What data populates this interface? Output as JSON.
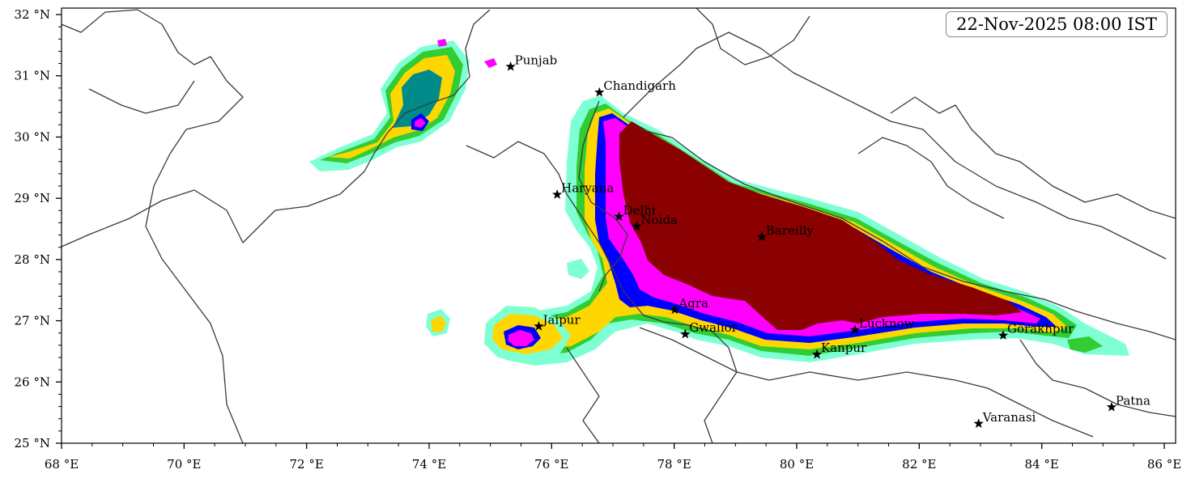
{
  "timestamp": "22-Nov-2025 08:00 IST",
  "axes": {
    "x_ticks": [
      {
        "value": 68,
        "label": "68 °E"
      },
      {
        "value": 70,
        "label": "70 °E"
      },
      {
        "value": 72,
        "label": "72 °E"
      },
      {
        "value": 74,
        "label": "74 °E"
      },
      {
        "value": 76,
        "label": "76 °E"
      },
      {
        "value": 78,
        "label": "78 °E"
      },
      {
        "value": 80,
        "label": "80 °E"
      },
      {
        "value": 82,
        "label": "82 °E"
      },
      {
        "value": 84,
        "label": "84 °E"
      },
      {
        "value": 86,
        "label": "86 °E"
      }
    ],
    "y_ticks": [
      {
        "value": 32,
        "label": "32 °N"
      },
      {
        "value": 31,
        "label": "31 °N"
      },
      {
        "value": 30,
        "label": "30 °N"
      },
      {
        "value": 29,
        "label": "29 °N"
      },
      {
        "value": 28,
        "label": "28 °N"
      },
      {
        "value": 27,
        "label": "27 °N"
      },
      {
        "value": 26,
        "label": "26 °N"
      },
      {
        "value": 25,
        "label": "25 °N"
      }
    ],
    "lon_range": [
      68,
      86.2
    ],
    "lat_range": [
      25,
      32.1
    ]
  },
  "cities": [
    {
      "name": "Punjab",
      "lon": 75.33,
      "lat": 31.15
    },
    {
      "name": "Chandigarh",
      "lon": 76.78,
      "lat": 30.73
    },
    {
      "name": "Haryana",
      "lon": 76.09,
      "lat": 29.06
    },
    {
      "name": "Delhi",
      "lon": 77.1,
      "lat": 28.7
    },
    {
      "name": "Noida",
      "lon": 77.39,
      "lat": 28.54
    },
    {
      "name": "Bareilly",
      "lon": 79.43,
      "lat": 28.37
    },
    {
      "name": "Agra",
      "lon": 78.01,
      "lat": 27.18
    },
    {
      "name": "Jaipur",
      "lon": 75.79,
      "lat": 26.91
    },
    {
      "name": "Gwalior",
      "lon": 78.18,
      "lat": 26.78
    },
    {
      "name": "Lucknow",
      "lon": 80.95,
      "lat": 26.85
    },
    {
      "name": "Kanpur",
      "lon": 80.33,
      "lat": 26.45
    },
    {
      "name": "Gorakhpur",
      "lon": 83.37,
      "lat": 26.76
    },
    {
      "name": "Varanasi",
      "lon": 82.97,
      "lat": 25.32
    },
    {
      "name": "Patna",
      "lon": 85.14,
      "lat": 25.59
    }
  ],
  "colors": {
    "level1": "#7fffd4",
    "level2": "#87ceeb",
    "level3": "#32cd32",
    "level4": "#ffd700",
    "level5": "#ffa500",
    "level6": "#008b8b",
    "level7": "#0000ff",
    "level8": "#ff00ff",
    "level9": "#8b0000",
    "border": "#3a3a3a"
  }
}
